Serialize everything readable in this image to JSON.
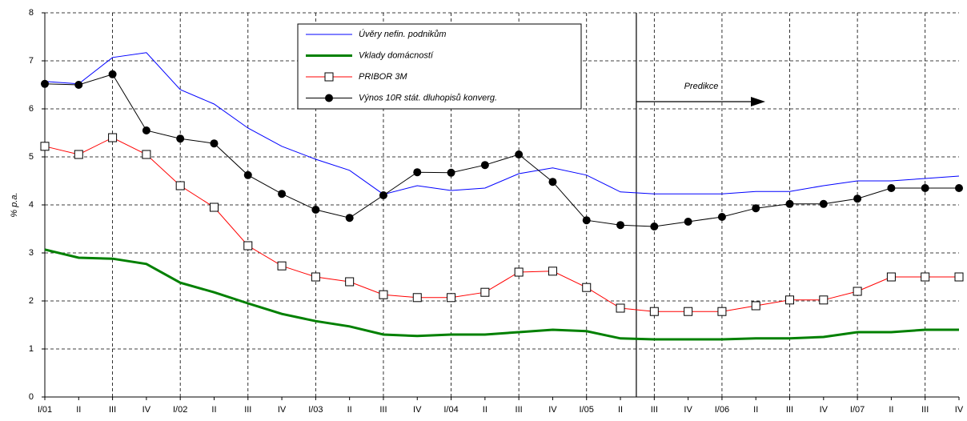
{
  "chart_data": {
    "type": "line",
    "y_label": "% p.a.",
    "annotation": "Predikce",
    "categories": [
      "I/01",
      "II",
      "III",
      "IV",
      "I/02",
      "II",
      "III",
      "IV",
      "I/03",
      "II",
      "III",
      "IV",
      "I/04",
      "II",
      "III",
      "IV",
      "I/05",
      "II",
      "III",
      "IV",
      "I/06",
      "II",
      "III",
      "IV",
      "I/07",
      "II",
      "III",
      "IV"
    ],
    "ylim": [
      0,
      8
    ],
    "yticks": [
      0,
      1,
      2,
      3,
      4,
      5,
      6,
      7,
      8
    ],
    "grid": true,
    "series": [
      {
        "name": "Úvěry nefin. podnikům",
        "color": "#0000ff",
        "marker": "none",
        "width": 1,
        "values": [
          6.57,
          6.52,
          7.07,
          7.17,
          6.4,
          6.1,
          5.6,
          5.22,
          4.95,
          4.72,
          4.22,
          4.4,
          4.3,
          4.35,
          4.65,
          4.77,
          4.62,
          4.27,
          4.23,
          4.23,
          4.23,
          4.28,
          4.28,
          4.4,
          4.5,
          4.5,
          4.55,
          4.6
        ]
      },
      {
        "name": "Vklady domácností",
        "color": "#008000",
        "marker": "none",
        "width": 3,
        "values": [
          3.07,
          2.9,
          2.88,
          2.77,
          2.38,
          2.18,
          1.95,
          1.73,
          1.58,
          1.47,
          1.3,
          1.27,
          1.3,
          1.3,
          1.35,
          1.4,
          1.37,
          1.22,
          1.2,
          1.2,
          1.2,
          1.22,
          1.22,
          1.25,
          1.35,
          1.35,
          1.4,
          1.4
        ]
      },
      {
        "name": "PRIBOR 3M",
        "color": "#ff0000",
        "marker": "square",
        "width": 1,
        "values": [
          5.22,
          5.05,
          5.4,
          5.05,
          4.4,
          3.95,
          3.15,
          2.73,
          2.5,
          2.4,
          2.13,
          2.07,
          2.07,
          2.18,
          2.6,
          2.62,
          2.28,
          1.85,
          1.78,
          1.78,
          1.78,
          1.9,
          2.02,
          2.02,
          2.2,
          2.5,
          2.5,
          2.5
        ]
      },
      {
        "name": "Výnos 10R stát. dluhopisů konverg.",
        "color": "#000000",
        "marker": "circle",
        "width": 1,
        "values": [
          6.52,
          6.5,
          6.72,
          5.55,
          5.38,
          5.28,
          4.62,
          4.23,
          3.9,
          3.73,
          4.2,
          4.68,
          4.67,
          4.83,
          5.05,
          4.48,
          3.68,
          3.58,
          3.55,
          3.65,
          3.75,
          3.93,
          4.02,
          4.02,
          4.13,
          4.35,
          4.35,
          4.35
        ]
      }
    ]
  }
}
